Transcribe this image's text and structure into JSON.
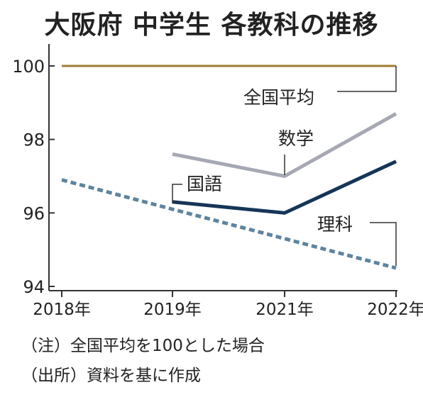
{
  "title": "大阪府 中学生 各教科の推移",
  "notes": [
    "（注）全国平均を100とした場合",
    "（出所）資料を基に作成"
  ],
  "chart_data": {
    "type": "line",
    "title": "大阪府 中学生 各教科の推移",
    "categories": [
      "2018年",
      "2019年",
      "2021年",
      "2022年"
    ],
    "ylim": [
      94,
      100
    ],
    "yticks": [
      94,
      96,
      98,
      100
    ],
    "grid": false,
    "series": [
      {
        "name": "全国平均",
        "values": [
          100,
          100,
          100,
          100
        ],
        "color": "#a07d35",
        "dash": false
      },
      {
        "name": "数学",
        "values": [
          null,
          97.6,
          97.0,
          98.7
        ],
        "color": "#a6a8b4",
        "dash": false
      },
      {
        "name": "国語",
        "values": [
          null,
          96.3,
          96.0,
          97.4
        ],
        "color": "#153558",
        "dash": false
      },
      {
        "name": "理科",
        "values": [
          96.9,
          96.1,
          95.3,
          94.5
        ],
        "color": "#5e849e",
        "dash": true
      }
    ]
  }
}
